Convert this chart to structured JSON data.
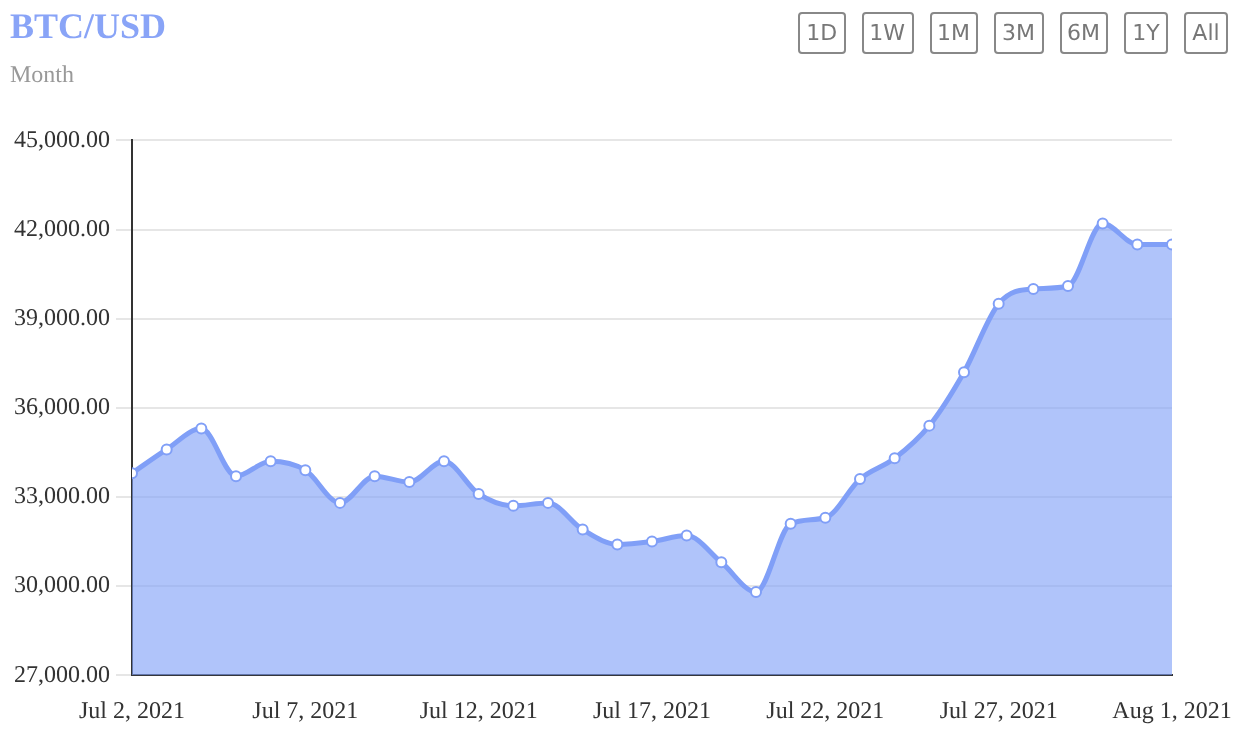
{
  "chart_data": {
    "type": "area",
    "title": "BTC/USD",
    "subtitle": "Month",
    "annotations": [
      "1D",
      "1W",
      "1M",
      "3M",
      "6M",
      "1Y",
      "All"
    ],
    "x": [
      "2021-07-02",
      "2021-07-03",
      "2021-07-04",
      "2021-07-05",
      "2021-07-06",
      "2021-07-07",
      "2021-07-08",
      "2021-07-09",
      "2021-07-10",
      "2021-07-11",
      "2021-07-12",
      "2021-07-13",
      "2021-07-14",
      "2021-07-15",
      "2021-07-16",
      "2021-07-17",
      "2021-07-18",
      "2021-07-19",
      "2021-07-20",
      "2021-07-21",
      "2021-07-22",
      "2021-07-23",
      "2021-07-24",
      "2021-07-25",
      "2021-07-26",
      "2021-07-27",
      "2021-07-28",
      "2021-07-29",
      "2021-07-30",
      "2021-07-31",
      "2021-08-01"
    ],
    "series": [
      {
        "color": "#809ff7",
        "values": [
          33800,
          34600,
          35300,
          33700,
          34200,
          33900,
          32800,
          33700,
          33500,
          34200,
          33100,
          32700,
          32800,
          31900,
          31400,
          31500,
          31700,
          30800,
          29800,
          32100,
          32300,
          33600,
          34300,
          35400,
          37200,
          39500,
          40000,
          40100,
          42200,
          41500,
          41500
        ]
      }
    ],
    "xlim": [
      "2021-07-02",
      "2021-08-01"
    ],
    "xticks": [
      {
        "value": "2021-07-02",
        "label": "Jul 2, 2021"
      },
      {
        "value": "2021-07-07",
        "label": "Jul 7, 2021"
      },
      {
        "value": "2021-07-12",
        "label": "Jul 12, 2021"
      },
      {
        "value": "2021-07-17",
        "label": "Jul 17, 2021"
      },
      {
        "value": "2021-07-22",
        "label": "Jul 22, 2021"
      },
      {
        "value": "2021-07-27",
        "label": "Jul 27, 2021"
      },
      {
        "value": "2021-08-01",
        "label": "Aug 1, 2021"
      }
    ],
    "ylim": [
      27000,
      45000
    ],
    "yticks": [
      {
        "value": 27000,
        "label": "27,000.00"
      },
      {
        "value": 30000,
        "label": "30,000.00"
      },
      {
        "value": 33000,
        "label": "33,000.00"
      },
      {
        "value": 36000,
        "label": "36,000.00"
      },
      {
        "value": 39000,
        "label": "39,000.00"
      },
      {
        "value": 42000,
        "label": "42,000.00"
      },
      {
        "value": 45000,
        "label": "45,000.00"
      }
    ],
    "grid": "y",
    "legend": false,
    "marker": "circle"
  }
}
